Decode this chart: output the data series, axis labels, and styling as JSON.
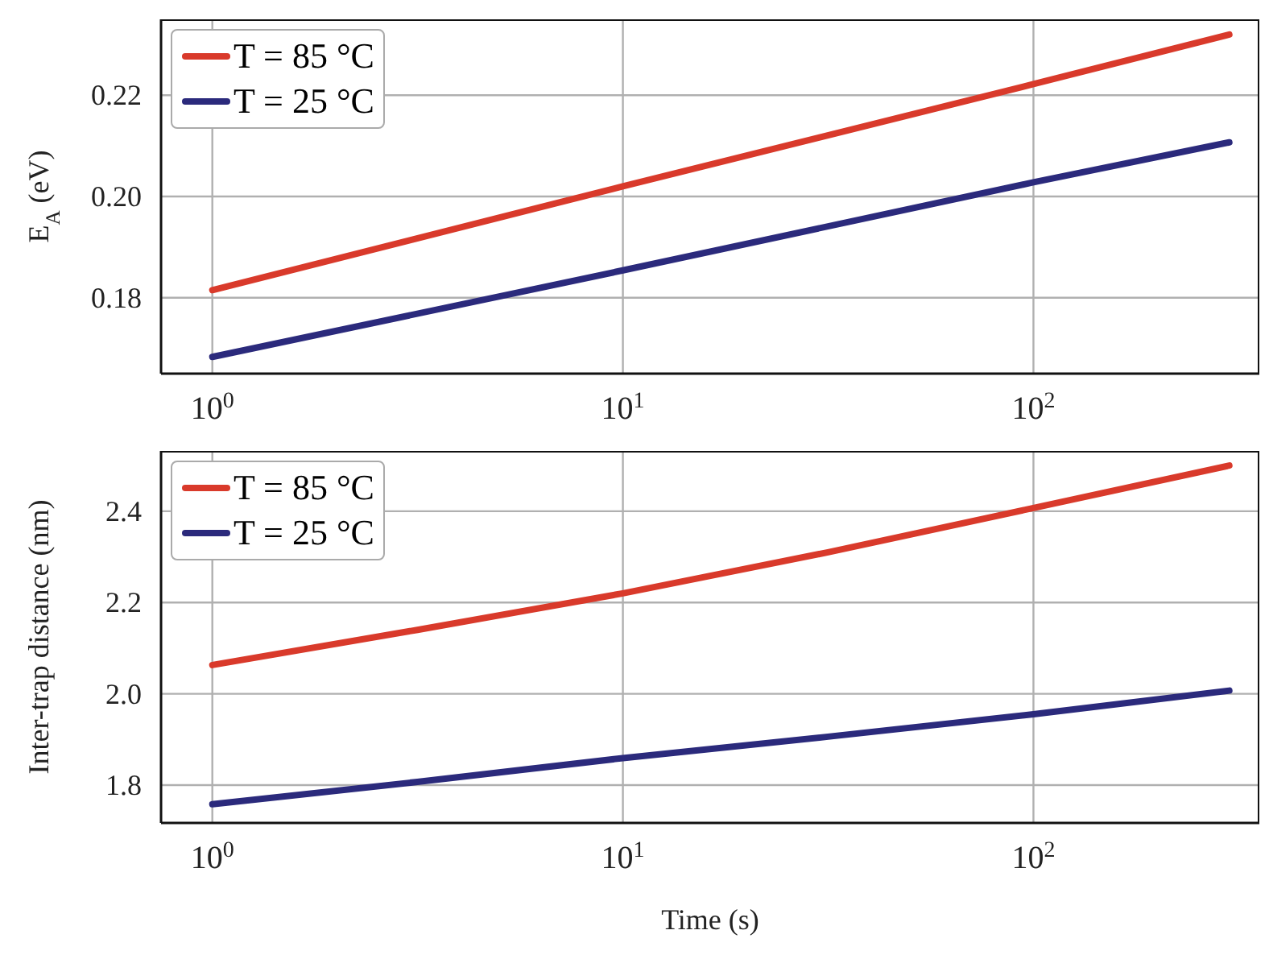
{
  "chart_data": [
    {
      "type": "line",
      "ylabel": "E$_{A}$ (eV)",
      "xlim": [
        0.75,
        355
      ],
      "log": "x",
      "xticks": [
        {
          "value": 1,
          "label": "10$^{0}$"
        },
        {
          "value": 10,
          "label": "10$^{1}$"
        },
        {
          "value": 100,
          "label": "10$^{2}$"
        }
      ],
      "ylim": [
        0.165,
        0.235
      ],
      "yticks": [
        0.18,
        {
          "value": 0.2,
          "label": "0.20"
        },
        0.22
      ],
      "grid": true,
      "legend": "top left",
      "line_style": "solid",
      "marker": "none",
      "series": [
        {
          "name": "T = 85 °C",
          "color": "#d93a2b",
          "x": [
            1,
            10,
            100,
            300
          ],
          "values": [
            0.1815,
            0.202,
            0.2222,
            0.232
          ]
        },
        {
          "name": "T = 25 °C",
          "color": "#2b2a7c",
          "x": [
            1,
            10,
            100,
            300
          ],
          "values": [
            0.1683,
            0.1854,
            0.2028,
            0.2107
          ]
        }
      ]
    },
    {
      "type": "line",
      "xlabel": "Time (s)",
      "ylabel": "Inter-trap distance (nm)",
      "xlim": [
        0.75,
        355
      ],
      "log": "x",
      "xticks": [
        {
          "value": 1,
          "label": "10$^{0}$"
        },
        {
          "value": 10,
          "label": "10$^{1}$"
        },
        {
          "value": 100,
          "label": "10$^{2}$"
        }
      ],
      "ylim": [
        1.717,
        2.532
      ],
      "yticks": [
        1.8,
        {
          "value": 2,
          "label": "2.0"
        },
        2.2,
        2.4
      ],
      "grid": true,
      "legend": "top left",
      "line_style": "solid",
      "marker": "none",
      "series": [
        {
          "name": "T = 85 °C",
          "color": "#d93a2b",
          "x": [
            1,
            3.16,
            10,
            31.6,
            100,
            300
          ],
          "values": [
            2.063,
            2.14,
            2.22,
            2.31,
            2.407,
            2.5
          ]
        },
        {
          "name": "T = 25 °C",
          "color": "#2b2a7c",
          "x": [
            1,
            3.16,
            10,
            31.6,
            100,
            300
          ],
          "values": [
            1.758,
            1.807,
            1.859,
            1.906,
            1.955,
            2.007
          ]
        }
      ]
    }
  ]
}
